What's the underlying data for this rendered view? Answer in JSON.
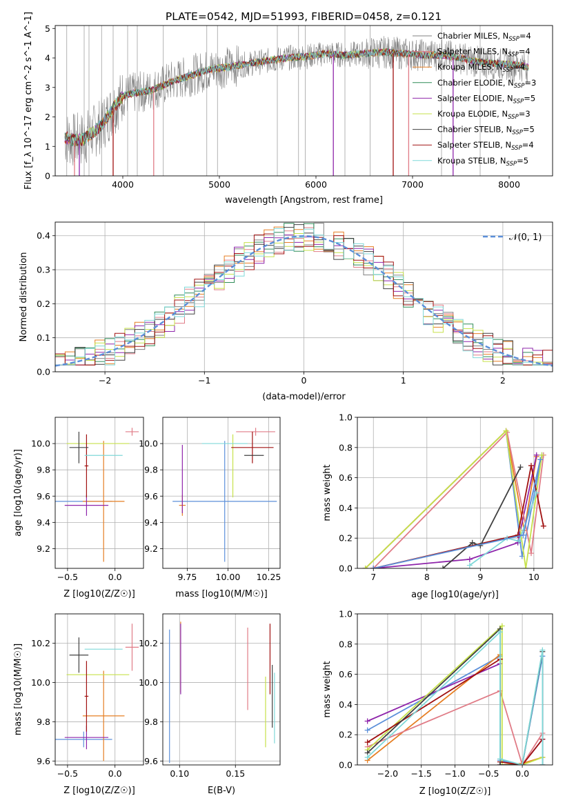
{
  "figure": {
    "title": "PLATE=0542, MJD=51993, FIBERID=0458, z=0.121"
  },
  "colors": {
    "data": "#808080",
    "models": [
      "#808080",
      "#e07b86",
      "#e67e22",
      "#2e8b57",
      "#8e24aa",
      "#c6e14a",
      "#404040",
      "#a01010",
      "#7fd8d8"
    ],
    "normal": "#5b8fd9",
    "extra": [
      "#5b8fd9",
      "#e67e22",
      "#8e24aa",
      "#e07b86",
      "#c6e14a",
      "#a01010",
      "#404040",
      "#7fd8d8"
    ]
  },
  "chart_data": [
    {
      "id": "spectrum",
      "type": "line",
      "xlabel": "wavelength [Angstrom, rest frame]",
      "ylabel": "Flux [f_λ 10^-17 erg cm^-2 s^-1 A^-1]",
      "xlim": [
        3300,
        8450
      ],
      "ylim": [
        0,
        5.1
      ],
      "xticks": [
        "4000",
        "5000",
        "6000",
        "7000",
        "8000"
      ],
      "yticks": [
        "0",
        "1",
        "2",
        "3",
        "4",
        "5"
      ],
      "grid": false,
      "legend": "top-right",
      "continuum": {
        "x": [
          3400,
          3500,
          3600,
          3700,
          3800,
          3900,
          4000,
          4100,
          4300,
          4500,
          4700,
          4900,
          5100,
          5300,
          5500,
          5700,
          5900,
          6100,
          6300,
          6500,
          6700,
          6900,
          7100,
          7300,
          7500,
          7700,
          7900,
          8100,
          8200
        ],
        "y": [
          1.3,
          1.2,
          1.25,
          1.5,
          1.8,
          2.3,
          2.7,
          2.8,
          2.9,
          3.2,
          3.4,
          3.6,
          3.7,
          3.8,
          3.9,
          4.0,
          4.05,
          4.15,
          4.1,
          4.15,
          4.2,
          4.15,
          4.1,
          4.1,
          4.0,
          3.85,
          3.8,
          3.75,
          3.7
        ]
      },
      "series": [
        {
          "name": "Chabrier MILES, N_SSP=4"
        },
        {
          "name": "Salpeter MILES, N_SSP=4"
        },
        {
          "name": "Kroupa MILES, N_SSP=4"
        },
        {
          "name": "Chabrier ELODIE, N_SSP=3"
        },
        {
          "name": "Salpeter ELODIE, N_SSP=5"
        },
        {
          "name": "Kroupa ELODIE, N_SSP=3"
        },
        {
          "name": "Chabrier STELIB, N_SSP=5"
        },
        {
          "name": "Salpeter STELIB, N_SSP=4"
        },
        {
          "name": "Kroupa STELIB, N_SSP=5"
        }
      ],
      "legend_labels": [
        {
          "pre": "Chabrier MILES, N",
          "sub": "SSP",
          "post": "=4"
        },
        {
          "pre": "Salpeter MILES, N",
          "sub": "SSP",
          "post": "=4"
        },
        {
          "pre": "Kroupa MILES, N",
          "sub": "SSP",
          "post": "=4"
        },
        {
          "pre": "Chabrier ELODIE, N",
          "sub": "SSP",
          "post": "=3"
        },
        {
          "pre": "Salpeter ELODIE, N",
          "sub": "SSP",
          "post": "=5"
        },
        {
          "pre": "Kroupa ELODIE, N",
          "sub": "SSP",
          "post": "=3"
        },
        {
          "pre": "Chabrier STELIB, N",
          "sub": "SSP",
          "post": "=5"
        },
        {
          "pre": "Salpeter STELIB, N",
          "sub": "SSP",
          "post": "=4"
        },
        {
          "pre": "Kroupa STELIB, N",
          "sub": "SSP",
          "post": "=5"
        }
      ],
      "spikes": [
        {
          "x": 3500,
          "y": 0
        },
        {
          "x": 3550,
          "y": 0
        },
        {
          "x": 3900,
          "y": 0
        },
        {
          "x": 4320,
          "y": 0
        },
        {
          "x": 6180,
          "y": 0
        },
        {
          "x": 6800,
          "y": 0
        },
        {
          "x": 6960,
          "y": 0
        },
        {
          "x": 7420,
          "y": 0
        }
      ]
    },
    {
      "id": "residuals",
      "type": "line",
      "xlabel": "(data-model)/error",
      "ylabel": "Normed distribution",
      "xlim": [
        -2.5,
        2.5
      ],
      "ylim": [
        0,
        0.44
      ],
      "xticks": [
        "−2",
        "−1",
        "0",
        "1",
        "2"
      ],
      "yticks": [
        "0.0",
        "0.1",
        "0.2",
        "0.3",
        "0.4"
      ],
      "grid": true,
      "legend": "top-right",
      "legend_label": "𝒩(0, 1)",
      "bin_width": 0.1
    },
    {
      "id": "age_vs_Z",
      "type": "scatter",
      "xlabel": "Z [log10(Z/Z☉)]",
      "ylabel": "age [log10(age/yr)]",
      "xlim": [
        -0.63,
        0.3
      ],
      "ylim": [
        9.05,
        10.2
      ],
      "xticks": [
        "−0.5",
        "0.0"
      ],
      "yticks": [
        "9.2",
        "9.4",
        "9.6",
        "9.8",
        "10.0"
      ],
      "grid": true,
      "points": [
        {
          "x": -0.33,
          "y": 9.56,
          "xerr": 0.3,
          "yerr": 0.0
        },
        {
          "x": -0.12,
          "y": 9.56,
          "xerr": 0.22,
          "yerr": 0.46
        },
        {
          "x": -0.3,
          "y": 9.53,
          "xerr": 0.23,
          "yerr": 0.08
        },
        {
          "x": 0.18,
          "y": 10.09,
          "xerr": 0.07,
          "yerr": 0.03
        },
        {
          "x": -0.18,
          "y": 10.0,
          "xerr": 0.33,
          "yerr": 0.0
        },
        {
          "x": -0.3,
          "y": 9.83,
          "xerr": 0.02,
          "yerr": 0.24
        },
        {
          "x": -0.38,
          "y": 9.97,
          "xerr": 0.1,
          "yerr": 0.12
        },
        {
          "x": -0.12,
          "y": 9.91,
          "xerr": 0.2,
          "yerr": 0.0
        }
      ]
    },
    {
      "id": "age_vs_mass",
      "type": "scatter",
      "xlabel": "mass [log10(M/M☉)]",
      "ylabel": "",
      "xlim": [
        9.6,
        10.32
      ],
      "ylim": [
        9.05,
        10.2
      ],
      "xticks": [
        "9.75",
        "10.00",
        "10.25"
      ],
      "yticks": [
        "9.2",
        "9.4",
        "9.6",
        "9.8",
        "10.0"
      ],
      "grid": true,
      "points": [
        {
          "x": 9.98,
          "y": 9.56,
          "xerr": 0.32,
          "yerr": 0.46
        },
        {
          "x": 9.72,
          "y": 9.53,
          "xerr": 0.02,
          "yerr": 0.08
        },
        {
          "x": 9.72,
          "y": 9.73,
          "xerr": 0.0,
          "yerr": 0.26
        },
        {
          "x": 10.17,
          "y": 10.09,
          "xerr": 0.12,
          "yerr": 0.03
        },
        {
          "x": 10.03,
          "y": 9.83,
          "xerr": 0.0,
          "yerr": 0.24
        },
        {
          "x": 10.15,
          "y": 9.97,
          "xerr": 0.13,
          "yerr": 0.12
        },
        {
          "x": 10.16,
          "y": 9.91,
          "xerr": 0.06,
          "yerr": 0.0
        },
        {
          "x": 9.98,
          "y": 10.0,
          "xerr": 0.14,
          "yerr": 0.0
        }
      ]
    },
    {
      "id": "mass_weight_vs_age",
      "type": "line",
      "xlabel": "age  [log10(age/yr)]",
      "ylabel": "mass weight",
      "xlim": [
        6.7,
        10.35
      ],
      "ylim": [
        0,
        1.0
      ],
      "xticks": [
        "7",
        "8",
        "9",
        "10"
      ],
      "yticks": [
        "0.0",
        "0.2",
        "0.4",
        "0.6",
        "0.8",
        "1.0"
      ],
      "grid": true,
      "series": [
        {
          "x": [
            6.85,
            9.48,
            9.78,
            10.15
          ],
          "y": [
            0.0,
            0.91,
            0.08,
            0.75
          ]
        },
        {
          "x": [
            6.85,
            9.48,
            9.82,
            10.05
          ],
          "y": [
            0.0,
            0.91,
            0.25,
            0.74
          ]
        },
        {
          "x": [
            7.0,
            8.8,
            9.7,
            10.05
          ],
          "y": [
            0.0,
            0.06,
            0.17,
            0.75
          ]
        },
        {
          "x": [
            7.0,
            9.5,
            9.95,
            10.18
          ],
          "y": [
            0.0,
            0.9,
            0.1,
            0.75
          ]
        },
        {
          "x": [
            6.85,
            9.48,
            9.85,
            10.15
          ],
          "y": [
            0.0,
            0.91,
            0.0,
            0.75
          ]
        },
        {
          "x": [
            7.0,
            9.7,
            9.95,
            10.18
          ],
          "y": [
            0.0,
            0.22,
            0.68,
            0.28
          ]
        },
        {
          "x": [
            8.3,
            8.85,
            9.0,
            9.75
          ],
          "y": [
            0.0,
            0.17,
            0.15,
            0.67
          ]
        },
        {
          "x": [
            8.8,
            9.5,
            9.72,
            10.05
          ],
          "y": [
            0.02,
            0.2,
            0.18,
            0.5
          ]
        },
        {
          "x": [
            7.0,
            9.8,
            10.12
          ],
          "y": [
            0.0,
            0.22,
            0.72
          ]
        }
      ]
    },
    {
      "id": "mass_vs_Z",
      "type": "scatter",
      "xlabel": "Z [log10(Z/Z☉)]",
      "ylabel": "mass [log10(M/M☉)]",
      "xlim": [
        -0.63,
        0.3
      ],
      "ylim": [
        9.58,
        10.35
      ],
      "xticks": [
        "−0.5",
        "0.0"
      ],
      "yticks": [
        "9.6",
        "9.8",
        "10.0",
        "10.2"
      ],
      "grid": true,
      "points": [
        {
          "x": -0.33,
          "y": 9.71,
          "xerr": 0.3,
          "yerr": 0.04
        },
        {
          "x": -0.12,
          "y": 9.83,
          "xerr": 0.22,
          "yerr": 0.23
        },
        {
          "x": -0.3,
          "y": 9.72,
          "xerr": 0.23,
          "yerr": 0.06
        },
        {
          "x": 0.18,
          "y": 10.18,
          "xerr": 0.07,
          "yerr": 0.12
        },
        {
          "x": -0.18,
          "y": 10.04,
          "xerr": 0.33,
          "yerr": 0.0
        },
        {
          "x": -0.3,
          "y": 9.93,
          "xerr": 0.02,
          "yerr": 0.18
        },
        {
          "x": -0.38,
          "y": 10.14,
          "xerr": 0.1,
          "yerr": 0.09
        },
        {
          "x": -0.12,
          "y": 10.17,
          "xerr": 0.2,
          "yerr": 0.0
        }
      ]
    },
    {
      "id": "mass_vs_ebv",
      "type": "scatter",
      "xlabel": "E(B-V)",
      "ylabel": "",
      "xlim": [
        0.085,
        0.19
      ],
      "ylim": [
        9.58,
        10.35
      ],
      "xticks": [
        "0.10",
        "0.15"
      ],
      "yticks": [
        "9.6",
        "9.8",
        "10.0",
        "10.2"
      ],
      "grid": true,
      "points": [
        {
          "x": 0.091,
          "y": 9.93,
          "xerr": 0.0,
          "yerr": 0.34
        },
        {
          "x": 0.101,
          "y": 10.13,
          "xerr": 0.0,
          "yerr": 0.18
        },
        {
          "x": 0.101,
          "y": 10.12,
          "xerr": 0.0,
          "yerr": 0.18
        },
        {
          "x": 0.161,
          "y": 10.07,
          "xerr": 0.0,
          "yerr": 0.21
        },
        {
          "x": 0.177,
          "y": 9.85,
          "xerr": 0.0,
          "yerr": 0.18
        },
        {
          "x": 0.181,
          "y": 10.12,
          "xerr": 0.0,
          "yerr": 0.18
        },
        {
          "x": 0.183,
          "y": 9.93,
          "xerr": 0.0,
          "yerr": 0.16
        },
        {
          "x": 0.185,
          "y": 9.87,
          "xerr": 0.0,
          "yerr": 0.18
        }
      ]
    },
    {
      "id": "mass_weight_vs_Z",
      "type": "line",
      "xlabel": "Z [log10(Z/Z☉)]",
      "ylabel": "mass weight",
      "xlim": [
        -2.45,
        0.45
      ],
      "ylim": [
        0,
        1.0
      ],
      "xticks": [
        "−2.0",
        "−1.5",
        "−1.0",
        "−0.5",
        "0.0"
      ],
      "yticks": [
        "0.0",
        "0.2",
        "0.4",
        "0.6",
        "0.8",
        "1.0"
      ],
      "grid": true,
      "series": [
        {
          "x": [
            -2.3,
            -0.33,
            -0.33,
            0.0,
            0.3,
            0.3
          ],
          "y": [
            0.23,
            0.72,
            0.03,
            0.0,
            0.72,
            0.0
          ]
        },
        {
          "x": [
            -2.3,
            -0.33,
            -0.33,
            0.0,
            0.3
          ],
          "y": [
            0.03,
            0.73,
            0.0,
            0.01,
            0.05
          ]
        },
        {
          "x": [
            -2.3,
            -0.33,
            -0.33,
            0.0,
            0.3
          ],
          "y": [
            0.29,
            0.67,
            0.0,
            0.0,
            0.17
          ]
        },
        {
          "x": [
            -2.3,
            -0.33,
            0.0,
            0.3
          ],
          "y": [
            0.12,
            0.49,
            0.0,
            0.21
          ]
        },
        {
          "x": [
            -2.3,
            -0.3,
            -0.3,
            0.0,
            0.3
          ],
          "y": [
            0.1,
            0.92,
            0.0,
            0.0,
            0.05
          ]
        },
        {
          "x": [
            -2.3,
            -0.33,
            -0.33,
            0.0,
            0.3
          ],
          "y": [
            0.15,
            0.7,
            0.02,
            0.0,
            0.17
          ]
        },
        {
          "x": [
            -2.3,
            -0.33,
            -0.33,
            0.0,
            0.3,
            0.3
          ],
          "y": [
            0.08,
            0.9,
            0.0,
            0.0,
            0.75,
            0.0
          ]
        },
        {
          "x": [
            -2.3,
            -0.33,
            -0.33,
            0.0,
            0.3,
            0.3
          ],
          "y": [
            0.05,
            0.88,
            0.04,
            0.0,
            0.76,
            0.0
          ]
        }
      ]
    }
  ]
}
